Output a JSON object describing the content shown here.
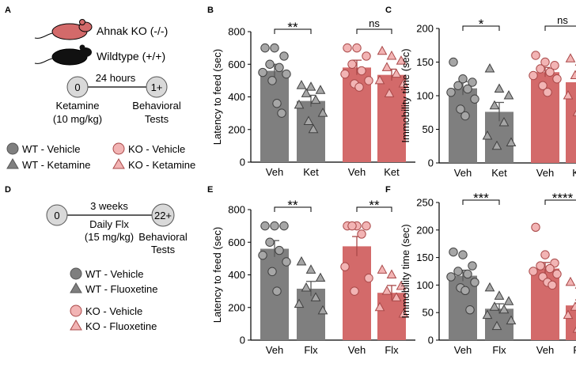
{
  "colors": {
    "wt": "#7f7f7f",
    "wt_dark": "#595959",
    "ko": "#d36a6a",
    "ko_light": "#f2b4b4",
    "ko_dark": "#a94848",
    "axis": "#000000"
  },
  "schematic_a": {
    "panel": "A",
    "mouse_ko": "Ahnak KO (-/-)",
    "mouse_wt": "Wildtype (+/+)",
    "interval": "24 hours",
    "node_start": "0",
    "node_end": "1+",
    "start_line1": "Ketamine",
    "start_line2": "(10 mg/kg)",
    "end_line1": "Behavioral",
    "end_line2": "Tests",
    "legend": [
      "WT - Vehicle",
      "KO - Vehicle",
      "WT - Ketamine",
      "KO - Ketamine"
    ]
  },
  "schematic_d": {
    "panel": "D",
    "node_start": "0",
    "node_end": "22+",
    "interval": "3 weeks",
    "drug_line1": "Daily Flx",
    "drug_line2": "(15 mg/kg)",
    "end_line1": "Behavioral",
    "end_line2": "Tests",
    "legend": [
      "WT - Vehicle",
      "WT - Fluoxetine",
      "KO - Vehicle",
      "KO - Fluoxetine"
    ]
  },
  "chart_data": [
    {
      "panel": "B",
      "type": "bar",
      "ylabel": "Latency to feed (sec)",
      "ylim": [
        0,
        800
      ],
      "yticks": [
        0,
        200,
        400,
        600,
        800
      ],
      "categories": [
        "Veh",
        "Ket",
        "Veh",
        "Ket"
      ],
      "groups": [
        "WT",
        "WT",
        "KO",
        "KO"
      ],
      "shapes": [
        "circle",
        "triangle",
        "circle",
        "triangle"
      ],
      "means": [
        560,
        375,
        580,
        535
      ],
      "sem": [
        40,
        35,
        45,
        35
      ],
      "points": [
        [
          700,
          700,
          650,
          600,
          580,
          550,
          540,
          500,
          360,
          300
        ],
        [
          470,
          460,
          440,
          420,
          380,
          350,
          300,
          250,
          200
        ],
        [
          700,
          700,
          650,
          600,
          560,
          540,
          500,
          480,
          460
        ],
        [
          680,
          650,
          620,
          580,
          540,
          500,
          480,
          420
        ]
      ],
      "significance": [
        {
          "label": "**",
          "pair": [
            0,
            1
          ]
        },
        {
          "label": "ns",
          "pair": [
            2,
            3
          ]
        }
      ]
    },
    {
      "panel": "C",
      "type": "bar",
      "ylabel": "Immobility time (sec)",
      "ylim": [
        0,
        200
      ],
      "yticks": [
        0,
        50,
        100,
        150,
        200
      ],
      "categories": [
        "Veh",
        "Ket",
        "Veh",
        "Ket"
      ],
      "groups": [
        "WT",
        "WT",
        "KO",
        "KO"
      ],
      "shapes": [
        "circle",
        "triangle",
        "circle",
        "triangle"
      ],
      "means": [
        111,
        76,
        135,
        120
      ],
      "sem": [
        10,
        14,
        7,
        12
      ],
      "points": [
        [
          150,
          125,
          120,
          115,
          110,
          105,
          95,
          80,
          70
        ],
        [
          140,
          110,
          100,
          85,
          60,
          40,
          30,
          25
        ],
        [
          160,
          150,
          145,
          140,
          135,
          130,
          125,
          115,
          105
        ],
        [
          155,
          150,
          140,
          130,
          110,
          100,
          80,
          75
        ]
      ],
      "significance": [
        {
          "label": "*",
          "pair": [
            0,
            1
          ]
        },
        {
          "label": "ns",
          "pair": [
            2,
            3
          ]
        }
      ]
    },
    {
      "panel": "E",
      "type": "bar",
      "ylabel": "Latency to feed (sec)",
      "ylim": [
        0,
        800
      ],
      "yticks": [
        0,
        200,
        400,
        600,
        800
      ],
      "categories": [
        "Veh",
        "Flx",
        "Veh",
        "Flx"
      ],
      "groups": [
        "WT",
        "WT",
        "KO",
        "KO"
      ],
      "shapes": [
        "circle",
        "triangle",
        "circle",
        "triangle"
      ],
      "means": [
        560,
        315,
        575,
        290
      ],
      "sem": [
        50,
        45,
        60,
        45
      ],
      "points": [
        [
          700,
          700,
          700,
          600,
          550,
          520,
          480,
          420,
          300
        ],
        [
          480,
          430,
          380,
          320,
          260,
          220,
          180
        ],
        [
          700,
          700,
          700,
          700,
          650,
          450,
          380,
          300
        ],
        [
          430,
          400,
          330,
          300,
          260,
          200,
          160
        ]
      ],
      "significance": [
        {
          "label": "**",
          "pair": [
            0,
            1
          ]
        },
        {
          "label": "**",
          "pair": [
            2,
            3
          ]
        }
      ]
    },
    {
      "panel": "F",
      "type": "bar",
      "ylabel": "Immobility time (sec)",
      "ylim": [
        0,
        250
      ],
      "yticks": [
        0,
        50,
        100,
        150,
        200,
        250
      ],
      "categories": [
        "Veh",
        "Flx",
        "Veh",
        "Flx"
      ],
      "groups": [
        "WT",
        "WT",
        "KO",
        "KO"
      ],
      "shapes": [
        "circle",
        "triangle",
        "circle",
        "triangle"
      ],
      "means": [
        117,
        57,
        130,
        63
      ],
      "sem": [
        10,
        9,
        11,
        10
      ],
      "points": [
        [
          160,
          155,
          135,
          125,
          120,
          115,
          105,
          95,
          90,
          55
        ],
        [
          95,
          80,
          70,
          60,
          55,
          45,
          35,
          25
        ],
        [
          205,
          155,
          140,
          135,
          130,
          125,
          120,
          115,
          105,
          100
        ],
        [
          105,
          100,
          80,
          60,
          55,
          45,
          35,
          20
        ]
      ],
      "significance": [
        {
          "label": "***",
          "pair": [
            0,
            1
          ]
        },
        {
          "label": "****",
          "pair": [
            2,
            3
          ]
        }
      ]
    }
  ]
}
